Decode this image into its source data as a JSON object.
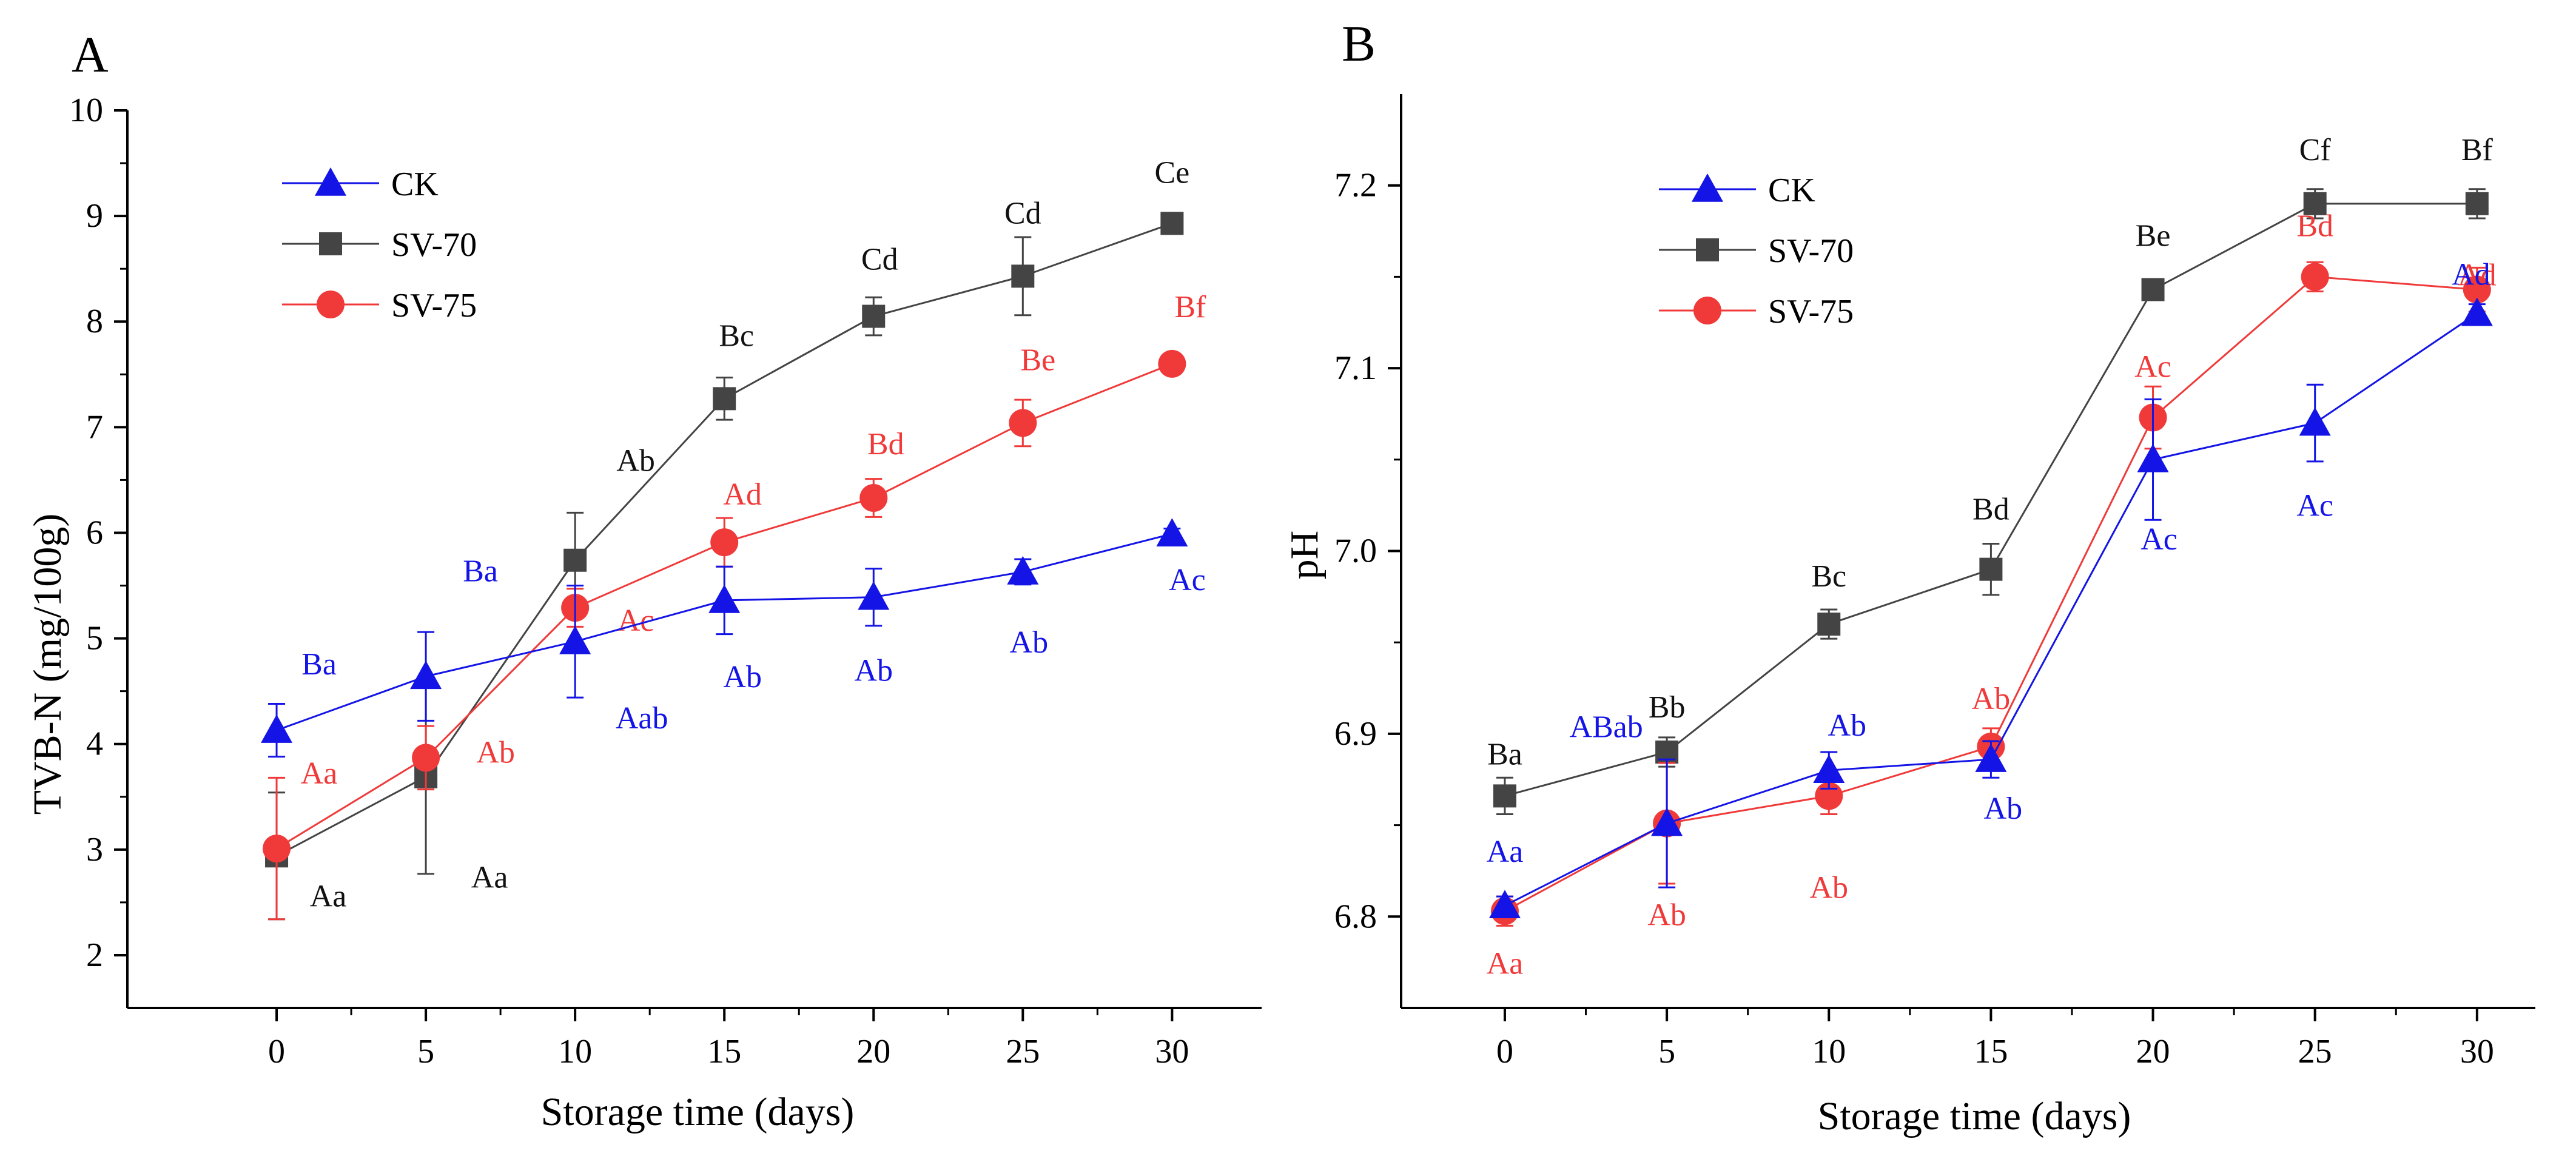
{
  "colors": {
    "CK": "#1414e6",
    "SV-70": "#444444",
    "SV-75": "#f03a3a",
    "SV-70_label": "#111111"
  },
  "chart_data": [
    {
      "type": "line",
      "panel_label": "A",
      "xlabel": "Storage time (days)",
      "ylabel": "TVB-N (mg/100g)",
      "xlim": [
        -5,
        33
      ],
      "ylim": [
        1.5,
        10
      ],
      "x_ticks": [
        "0",
        "5",
        "10",
        "15",
        "20",
        "25",
        "30"
      ],
      "y_ticks": [
        "2",
        "3",
        "4",
        "5",
        "6",
        "7",
        "8",
        "9",
        "10"
      ],
      "legend": [
        "CK",
        "SV-70",
        "SV-75"
      ],
      "x": [
        0,
        5,
        10,
        15,
        20,
        25,
        30
      ],
      "series": [
        {
          "name": "CK",
          "marker": "triangle",
          "values": [
            4.13,
            4.64,
            4.97,
            5.36,
            5.39,
            5.63,
            5.99
          ],
          "errors": [
            0.25,
            0.42,
            0.53,
            0.32,
            0.27,
            0.12,
            0.05
          ],
          "labels": [
            "Ba",
            "Ba",
            "Aab",
            "Ab",
            "Ab",
            "Ab",
            "Ac"
          ]
        },
        {
          "name": "SV-70",
          "marker": "square",
          "values": [
            2.94,
            3.69,
            5.74,
            7.27,
            8.05,
            8.43,
            8.93
          ],
          "errors": [
            0.6,
            0.92,
            0.45,
            0.2,
            0.18,
            0.37,
            0.05
          ],
          "labels": [
            "Aa",
            "Aa",
            "Ab",
            "Bc",
            "Cd",
            "Cd",
            "Ce"
          ]
        },
        {
          "name": "SV-75",
          "marker": "circle",
          "values": [
            3.01,
            3.87,
            5.29,
            5.91,
            6.33,
            7.04,
            7.6
          ],
          "errors": [
            0.67,
            0.3,
            0.18,
            0.23,
            0.18,
            0.22,
            0.05
          ],
          "labels": [
            "Aa",
            "Ab",
            "Ac",
            "Ad",
            "Bd",
            "Be",
            "Bf"
          ]
        }
      ]
    },
    {
      "type": "line",
      "panel_label": "B",
      "xlabel": "Storage time (days)",
      "ylabel": "pH",
      "xlim": [
        -3.2,
        31.8
      ],
      "ylim": [
        6.75,
        7.25
      ],
      "x_ticks": [
        "0",
        "5",
        "10",
        "15",
        "20",
        "25",
        "30"
      ],
      "y_ticks": [
        "6.8",
        "6.9",
        "7.0",
        "7.1",
        "7.2"
      ],
      "legend": [
        "CK",
        "SV-70",
        "SV-75"
      ],
      "x": [
        0,
        5,
        10,
        15,
        20,
        25,
        30
      ],
      "series": [
        {
          "name": "CK",
          "marker": "triangle",
          "values": [
            6.806,
            6.851,
            6.88,
            6.886,
            7.05,
            7.07,
            7.13
          ],
          "errors": [
            0.005,
            0.035,
            0.01,
            0.01,
            0.033,
            0.021,
            0.005
          ],
          "labels": [
            "Aa",
            "ABab",
            "Ab",
            "Ab",
            "Ac",
            "Ac",
            "Ad"
          ]
        },
        {
          "name": "SV-70",
          "marker": "square",
          "values": [
            6.866,
            6.89,
            6.96,
            6.99,
            7.143,
            7.19,
            7.19
          ],
          "errors": [
            0.01,
            0.008,
            0.008,
            0.014,
            0.004,
            0.008,
            0.008
          ],
          "labels": [
            "Ba",
            "Bb",
            "Bc",
            "Bd",
            "Be",
            "Cf",
            "Bf"
          ]
        },
        {
          "name": "SV-75",
          "marker": "circle",
          "values": [
            6.803,
            6.851,
            6.866,
            6.893,
            7.073,
            7.15,
            7.143
          ],
          "errors": [
            0.008,
            0.033,
            0.01,
            0.01,
            0.017,
            0.008,
            0.012
          ],
          "labels": [
            "Aa",
            "Ab",
            "Ab",
            "Ab",
            "Ac",
            "Bd",
            "Ad"
          ]
        }
      ]
    }
  ]
}
